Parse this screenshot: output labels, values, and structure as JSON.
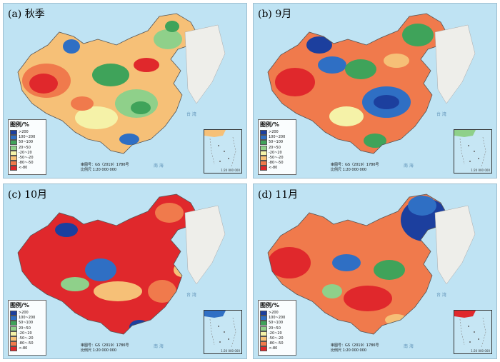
{
  "legend": {
    "title": "图例/%",
    "items": [
      {
        "label": ">200",
        "color": "#1c3f9e"
      },
      {
        "label": "100~200",
        "color": "#2f6fc4"
      },
      {
        "label": "50~100",
        "color": "#3fa35a"
      },
      {
        "label": "20~50",
        "color": "#8fd08a"
      },
      {
        "label": "-20~20",
        "color": "#f5f2a8"
      },
      {
        "label": "-50~-20",
        "color": "#f6c077"
      },
      {
        "label": "-80~-50",
        "color": "#f07a4c"
      },
      {
        "label": "<-80",
        "color": "#e0282c"
      }
    ]
  },
  "credit": {
    "line1": "审图号：GS（2019）1786号",
    "line2": "比例尺 1:20 000 000"
  },
  "inset_scale": "1:20 000 000",
  "sea_labels": {
    "south_china_sea": "南 海",
    "taiwan": "台 湾"
  },
  "panels": [
    {
      "label": "(a) 秋季"
    },
    {
      "label": "(b) 9月"
    },
    {
      "label": "(c) 10月"
    },
    {
      "label": "(d) 11月"
    }
  ]
}
